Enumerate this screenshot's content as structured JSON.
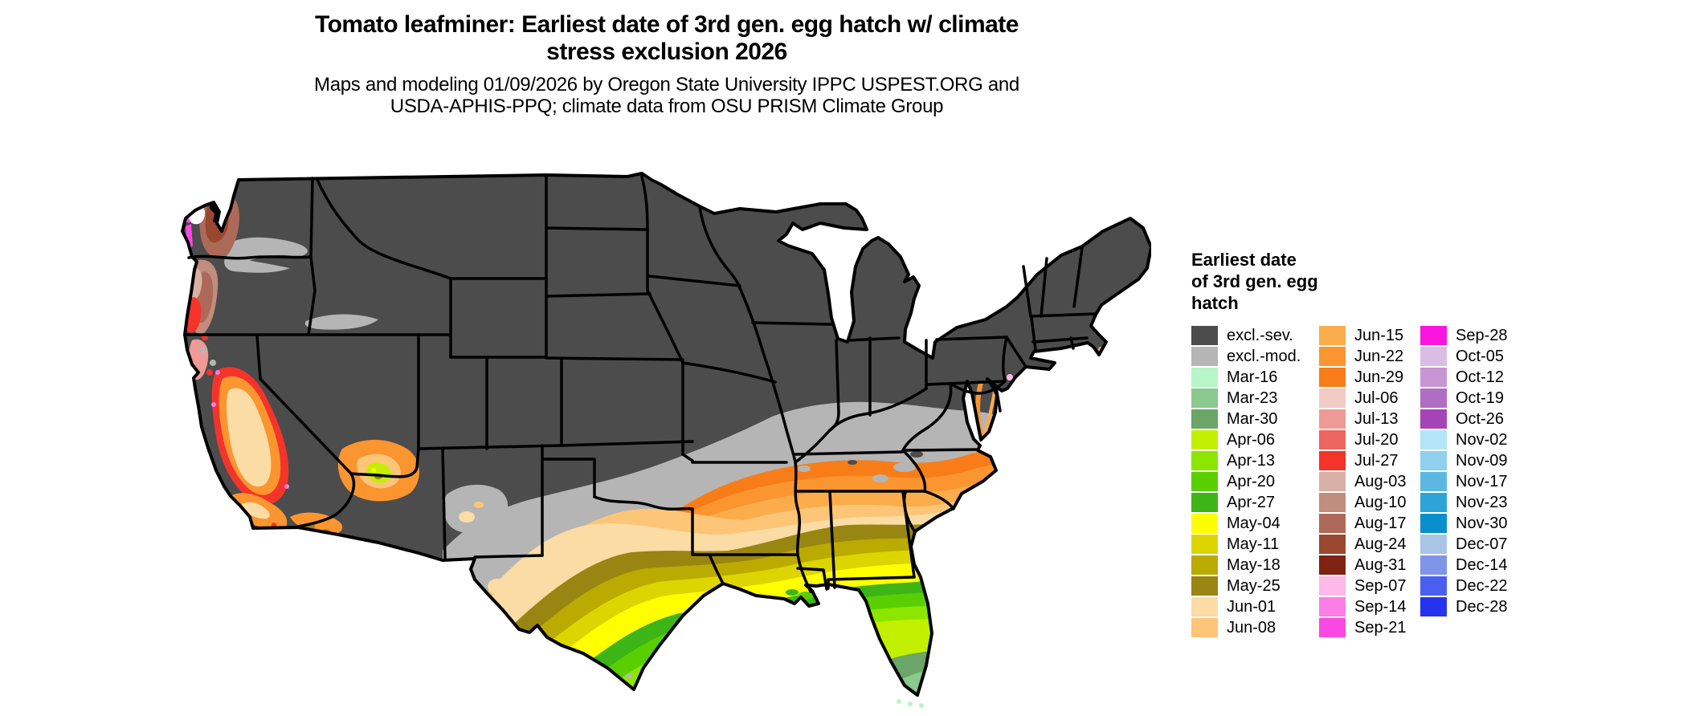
{
  "title": {
    "line1": "Tomato leafminer: Earliest date of 3rd gen. egg hatch w/ climate",
    "line2": "stress exclusion 2026"
  },
  "subtitle": {
    "line1": "Maps and modeling 01/09/2026 by Oregon State University IPPC USPEST.ORG and",
    "line2": "USDA-APHIS-PPQ; climate data from OSU PRISM Climate Group"
  },
  "legend": {
    "title_lines": [
      "Earliest date",
      "of 3rd gen. egg",
      "hatch"
    ],
    "columns": [
      [
        {
          "label": "excl.-sev.",
          "color": "#4c4c4c"
        },
        {
          "label": "excl.-mod.",
          "color": "#b5b5b5"
        },
        {
          "label": "Mar-16",
          "color": "#b8f5c8"
        },
        {
          "label": "Mar-23",
          "color": "#8bc98f"
        },
        {
          "label": "Mar-30",
          "color": "#6ba568"
        },
        {
          "label": "Apr-06",
          "color": "#c3f000"
        },
        {
          "label": "Apr-13",
          "color": "#8ce600"
        },
        {
          "label": "Apr-20",
          "color": "#5acf00"
        },
        {
          "label": "Apr-27",
          "color": "#3db516"
        },
        {
          "label": "May-04",
          "color": "#ffff00"
        },
        {
          "label": "May-11",
          "color": "#ddd500"
        },
        {
          "label": "May-18",
          "color": "#bbaa00"
        },
        {
          "label": "May-25",
          "color": "#998511"
        },
        {
          "label": "Jun-01",
          "color": "#fbdca4"
        },
        {
          "label": "Jun-08",
          "color": "#fcc578"
        }
      ],
      [
        {
          "label": "Jun-15",
          "color": "#fbad4c"
        },
        {
          "label": "Jun-22",
          "color": "#fa9530"
        },
        {
          "label": "Jun-29",
          "color": "#f87d18"
        },
        {
          "label": "Jul-06",
          "color": "#f2cbc7"
        },
        {
          "label": "Jul-13",
          "color": "#ef9a96"
        },
        {
          "label": "Jul-20",
          "color": "#ed6660"
        },
        {
          "label": "Jul-27",
          "color": "#f4342b"
        },
        {
          "label": "Aug-03",
          "color": "#d8b0a5"
        },
        {
          "label": "Aug-10",
          "color": "#c08d7e"
        },
        {
          "label": "Aug-17",
          "color": "#ad6a58"
        },
        {
          "label": "Aug-24",
          "color": "#99472f"
        },
        {
          "label": "Aug-31",
          "color": "#7e2211"
        },
        {
          "label": "Sep-07",
          "color": "#fcb9e9"
        },
        {
          "label": "Sep-14",
          "color": "#fb7de5"
        },
        {
          "label": "Sep-21",
          "color": "#fa48e2"
        }
      ],
      [
        {
          "label": "Sep-28",
          "color": "#fa16df"
        },
        {
          "label": "Oct-05",
          "color": "#d9bde4"
        },
        {
          "label": "Oct-12",
          "color": "#c795d3"
        },
        {
          "label": "Oct-19",
          "color": "#b06dc4"
        },
        {
          "label": "Oct-26",
          "color": "#a444b6"
        },
        {
          "label": "Nov-02",
          "color": "#b5e5f9"
        },
        {
          "label": "Nov-09",
          "color": "#8ed0ee"
        },
        {
          "label": "Nov-17",
          "color": "#5cb8e3"
        },
        {
          "label": "Nov-23",
          "color": "#2da4d8"
        },
        {
          "label": "Nov-30",
          "color": "#0a8fcd"
        },
        {
          "label": "Dec-07",
          "color": "#aac4e6"
        },
        {
          "label": "Dec-14",
          "color": "#7e95e9"
        },
        {
          "label": "Dec-22",
          "color": "#4a5fee"
        },
        {
          "label": "Dec-28",
          "color": "#2633ee"
        }
      ]
    ]
  },
  "map": {
    "colors": {
      "background": "#ffffff",
      "state-border": "#000000",
      "sound-ink": "#000000"
    }
  }
}
